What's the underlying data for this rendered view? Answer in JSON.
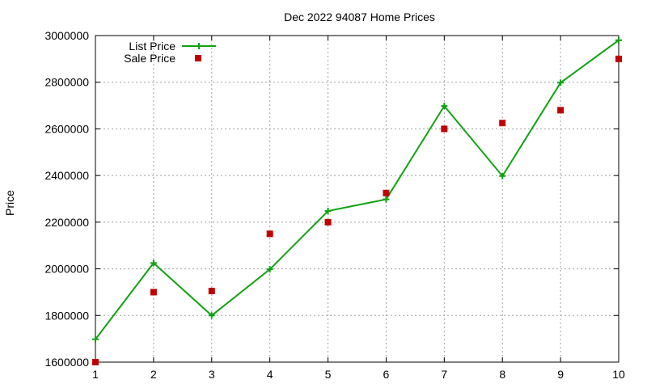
{
  "chart_data": {
    "type": "line",
    "title": "Dec 2022 94087 Home Prices",
    "xlabel": "",
    "ylabel": "Price",
    "x": [
      1,
      2,
      3,
      4,
      5,
      6,
      7,
      8,
      9,
      10
    ],
    "xlim": [
      1,
      10
    ],
    "ylim": [
      1600000,
      3000000
    ],
    "xticks": [
      1,
      2,
      3,
      4,
      5,
      6,
      7,
      8,
      9,
      10
    ],
    "yticks": [
      1600000,
      1800000,
      2000000,
      2200000,
      2400000,
      2600000,
      2800000,
      3000000
    ],
    "grid": true,
    "legend_position": "top-left",
    "series": [
      {
        "name": "List Price",
        "style": "line-with-plus-markers",
        "color": "#0fa30f",
        "values": [
          1698000,
          2025000,
          1800000,
          1998000,
          2248000,
          2298000,
          2698000,
          2398000,
          2798000,
          2980000
        ]
      },
      {
        "name": "Sale Price",
        "style": "square-markers",
        "color": "#c00000",
        "values": [
          1600000,
          1900000,
          1905000,
          2150000,
          2200000,
          2325000,
          2600000,
          2625000,
          2680000,
          2900000
        ]
      }
    ]
  }
}
